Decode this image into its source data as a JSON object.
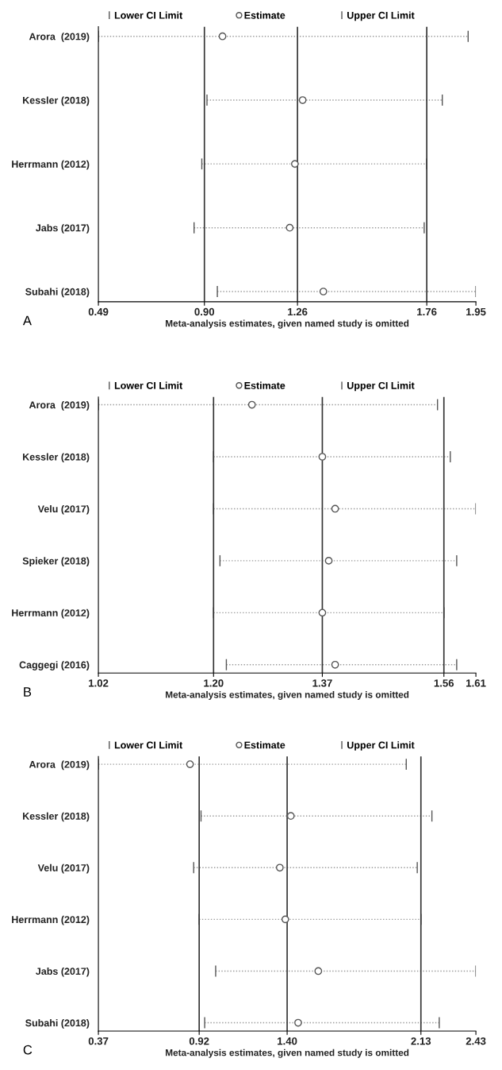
{
  "chart_data": [
    {
      "type": "scatter",
      "orientation": "horizontal",
      "xlabel": "Meta-analysis estimates, given named study is omitted",
      "annotations": [
        "Lower CI Limit",
        "Upper CI Limit",
        "A"
      ],
      "categories": [
        "Arora  (2019)",
        "Kessler (2018)",
        "Herrmann (2012)",
        "Jabs (2017)",
        "Subahi (2018)"
      ],
      "series": [
        {
          "name": "Estimate",
          "color": "#555555",
          "values": [
            0.97,
            1.28,
            1.25,
            1.23,
            1.36
          ],
          "errors": [
            [
              0.49,
              1.92
            ],
            [
              0.91,
              1.82
            ],
            [
              0.89,
              1.76
            ],
            [
              0.86,
              1.75
            ],
            [
              0.95,
              1.95
            ]
          ]
        }
      ],
      "marker": "circle",
      "line_style": "dotted",
      "legend": "top",
      "grid": false,
      "xlim": [
        0.49,
        1.95
      ],
      "xticks": [
        0.49,
        {
          "value": 0.9,
          "label": "0.90"
        },
        1.26,
        1.76,
        1.95
      ],
      "ref_lines": [
        {
          "axis": "x",
          "value": 0.9,
          "color": "#333333"
        },
        {
          "axis": "x",
          "value": 1.26,
          "color": "#333333"
        },
        {
          "axis": "x",
          "value": 1.76,
          "color": "#333333"
        }
      ]
    },
    {
      "type": "scatter",
      "orientation": "horizontal",
      "xlabel": "Meta-analysis estimates, given named study is omitted",
      "annotations": [
        "Lower CI Limit",
        "Upper CI Limit",
        "B"
      ],
      "categories": [
        "Arora  (2019)",
        "Kessler (2018)",
        "Velu (2017)",
        "Spieker (2018)",
        "Herrmann (2012)",
        "Caggegi (2016)"
      ],
      "series": [
        {
          "name": "Estimate",
          "color": "#555555",
          "values": [
            1.26,
            1.37,
            1.39,
            1.38,
            1.37,
            1.39
          ],
          "errors": [
            [
              1.02,
              1.55
            ],
            [
              1.2,
              1.57
            ],
            [
              1.2,
              1.61
            ],
            [
              1.21,
              1.58
            ],
            [
              1.2,
              1.56
            ],
            [
              1.22,
              1.58
            ]
          ]
        }
      ],
      "marker": "circle",
      "line_style": "dotted",
      "legend": "top",
      "grid": false,
      "xlim": [
        1.02,
        1.61
      ],
      "xticks": [
        1.02,
        {
          "value": 1.2,
          "label": "1.20"
        },
        1.37,
        1.56,
        1.61
      ],
      "ref_lines": [
        {
          "axis": "x",
          "value": 1.2,
          "color": "#333333"
        },
        {
          "axis": "x",
          "value": 1.37,
          "color": "#333333"
        },
        {
          "axis": "x",
          "value": 1.56,
          "color": "#333333"
        }
      ]
    },
    {
      "type": "scatter",
      "orientation": "horizontal",
      "xlabel": "Meta-analysis estimates, given named study is omitted",
      "annotations": [
        "Lower CI Limit",
        "Upper CI Limit",
        "C"
      ],
      "categories": [
        "Arora  (2019)",
        "Kessler (2018)",
        "Velu (2017)",
        "Herrmann (2012)",
        "Jabs (2017)",
        "Subahi (2018)"
      ],
      "series": [
        {
          "name": "Estimate",
          "color": "#555555",
          "values": [
            0.87,
            1.42,
            1.36,
            1.39,
            1.57,
            1.46
          ],
          "errors": [
            [
              0.37,
              2.05
            ],
            [
              0.93,
              2.19
            ],
            [
              0.89,
              2.11
            ],
            [
              0.92,
              2.13
            ],
            [
              1.01,
              2.43
            ],
            [
              0.95,
              2.23
            ]
          ]
        }
      ],
      "marker": "circle",
      "line_style": "dotted",
      "legend": "top",
      "grid": false,
      "xlim": [
        0.37,
        2.43
      ],
      "xticks": [
        0.37,
        0.92,
        {
          "value": 1.4,
          "label": "1.40"
        },
        2.13,
        2.43
      ],
      "ref_lines": [
        {
          "axis": "x",
          "value": 0.92,
          "color": "#333333"
        },
        {
          "axis": "x",
          "value": 1.4,
          "color": "#333333"
        },
        {
          "axis": "x",
          "value": 2.13,
          "color": "#333333"
        }
      ]
    }
  ]
}
